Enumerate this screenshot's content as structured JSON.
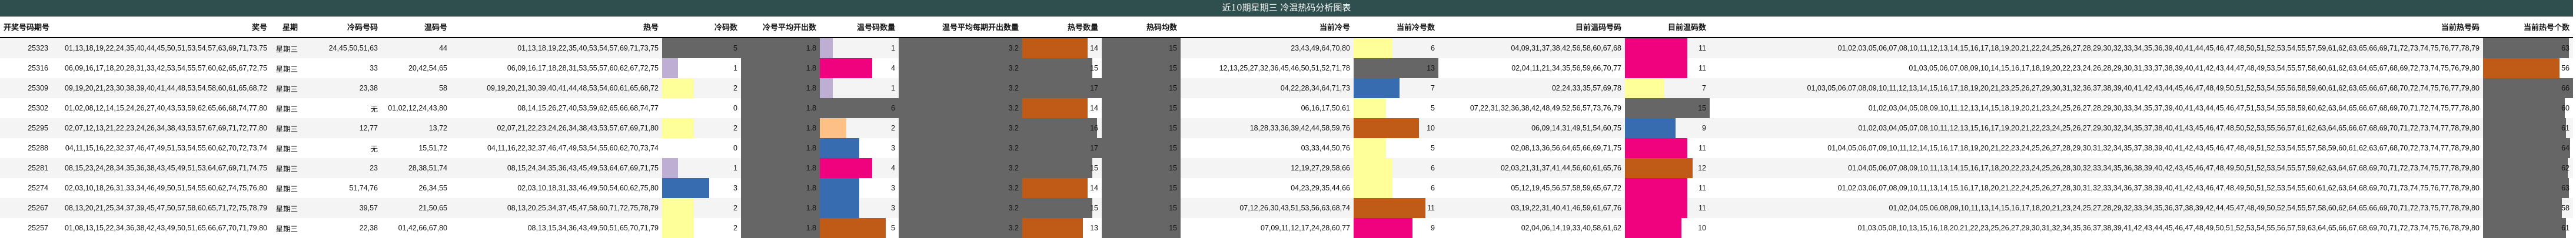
{
  "title": "近10期星期三 冷温热码分析图表",
  "headers": [
    "开奖号码期号",
    "奖号",
    "星期",
    "冷码号码",
    "温码号",
    "热号",
    "冷码数",
    "冷号平均开出数",
    "温号码数量",
    "温号平均每期开出数量",
    "热号数量",
    "热码均数",
    "当前冷号",
    "当前冷号数",
    "目前温码号码",
    "目前温码数",
    "当前热号码",
    "当前热号个数"
  ],
  "colormap": [
    "#7fc97f",
    "#beaed4",
    "#fdc086",
    "#ffff99",
    "#386cb0",
    "#f0027f",
    "#bf5b17",
    "#666666"
  ],
  "rows": [
    {
      "issue": "25323",
      "draw": "01,13,18,19,22,24,35,40,44,45,50,51,53,54,57,63,69,71,73,75",
      "weekday": "星期三",
      "cold": "24,45,50,51,63",
      "warm": "44",
      "hot": "01,13,18,19,22,35,40,53,54,57,69,71,73,75",
      "cold_count": 5,
      "cold_avg": 1.8,
      "warm_count": 1,
      "warm_avg": 3.2,
      "hot_count": 14,
      "hot_avg": 15,
      "cur_cold": "23,43,49,64,70,80",
      "cur_cold_count": 6,
      "cur_warm": "04,09,31,37,38,42,56,58,60,67,68",
      "cur_warm_count": 11,
      "cur_hot": "01,02,03,05,06,07,08,10,11,12,13,14,15,16,17,18,19,20,21,22,24,25,26,27,28,29,30,32,33,34,35,36,39,40,41,44,45,46,47,48,50,51,52,53,54,55,57,59,61,62,63,65,66,69,71,72,73,74,75,76,77,78,79",
      "cur_hot_count": 63
    },
    {
      "issue": "25316",
      "draw": "06,09,16,17,18,20,28,31,33,42,53,54,55,57,60,62,65,67,72,75",
      "weekday": "星期三",
      "cold": "33",
      "warm": "20,42,54,65",
      "hot": "06,09,16,17,18,28,31,53,55,57,60,62,67,72,75",
      "cold_count": 1,
      "cold_avg": 1.8,
      "warm_count": 4,
      "warm_avg": 3.2,
      "hot_count": 15,
      "hot_avg": 15,
      "cur_cold": "12,13,25,27,32,36,45,46,50,51,52,71,78",
      "cur_cold_count": 13,
      "cur_warm": "02,04,11,21,34,35,56,59,66,70,77",
      "cur_warm_count": 11,
      "cur_hot": "01,03,05,06,07,08,09,10,14,15,16,17,18,19,20,22,23,24,26,28,29,30,31,33,37,38,39,40,41,42,43,44,47,48,49,53,54,55,57,58,60,61,62,63,64,65,67,68,69,72,73,74,75,76,79,80",
      "cur_hot_count": 56
    },
    {
      "issue": "25309",
      "draw": "09,19,20,21,23,30,38,39,40,41,44,48,53,54,58,60,61,65,68,72",
      "weekday": "星期三",
      "cold": "23,38",
      "warm": "58",
      "hot": "09,19,20,21,30,39,40,41,44,48,53,54,60,61,65,68,72",
      "cold_count": 2,
      "cold_avg": 1.8,
      "warm_count": 1,
      "warm_avg": 3.2,
      "hot_count": 17,
      "hot_avg": 15,
      "cur_cold": "04,22,28,34,64,71,73",
      "cur_cold_count": 7,
      "cur_warm": "02,24,33,35,57,69,78",
      "cur_warm_count": 7,
      "cur_hot": "01,03,05,06,07,08,09,10,11,12,13,14,15,16,17,18,19,20,21,23,25,26,27,29,30,31,32,36,37,38,39,40,41,42,43,44,45,46,47,48,49,50,51,52,53,54,55,56,58,59,60,61,62,63,65,66,67,68,70,72,74,75,76,77,79,80",
      "cur_hot_count": 66
    },
    {
      "issue": "25302",
      "draw": "01,02,08,12,14,15,24,26,27,40,43,53,59,62,65,66,68,74,77,80",
      "weekday": "星期三",
      "cold": "无",
      "warm": "01,02,12,24,43,80",
      "hot": "08,14,15,26,27,40,53,59,62,65,66,68,74,77",
      "cold_count": 0,
      "cold_avg": 1.8,
      "warm_count": 6,
      "warm_avg": 3.2,
      "hot_count": 14,
      "hot_avg": 15,
      "cur_cold": "06,16,17,50,61",
      "cur_cold_count": 5,
      "cur_warm": "07,22,31,32,36,38,42,48,49,52,56,57,73,76,79",
      "cur_warm_count": 15,
      "cur_hot": "01,02,03,04,05,08,09,10,11,12,13,14,15,18,19,20,21,23,24,25,26,27,28,29,30,33,34,35,37,39,40,41,43,44,45,46,47,51,53,54,55,58,59,60,62,63,64,65,66,67,68,69,70,71,72,74,75,77,78,80",
      "cur_hot_count": 60
    },
    {
      "issue": "25295",
      "draw": "02,07,12,13,21,22,23,24,26,34,38,43,53,57,67,69,71,72,77,80",
      "weekday": "星期三",
      "cold": "12,77",
      "warm": "13,72",
      "hot": "02,07,21,22,23,24,26,34,38,43,53,57,67,69,71,80",
      "cold_count": 2,
      "cold_avg": 1.8,
      "warm_count": 2,
      "warm_avg": 3.2,
      "hot_count": 16,
      "hot_avg": 15,
      "cur_cold": "18,28,33,36,39,42,44,58,59,76",
      "cur_cold_count": 10,
      "cur_warm": "06,09,14,31,49,51,54,60,75",
      "cur_warm_count": 9,
      "cur_hot": "01,02,03,04,05,07,08,10,11,12,13,15,16,17,19,20,21,22,23,24,25,26,27,29,30,32,34,35,37,38,40,41,43,45,46,47,48,50,52,53,55,56,57,61,62,63,64,65,66,67,68,69,70,71,72,73,74,77,78,79,80",
      "cur_hot_count": 61
    },
    {
      "issue": "25288",
      "draw": "04,11,15,16,22,32,37,46,47,49,51,53,54,55,60,62,70,72,73,74",
      "weekday": "星期三",
      "cold": "无",
      "warm": "15,51,72",
      "hot": "04,11,16,22,32,37,46,47,49,53,54,55,60,62,70,73,74",
      "cold_count": 0,
      "cold_avg": 1.8,
      "warm_count": 3,
      "warm_avg": 3.2,
      "hot_count": 17,
      "hot_avg": 15,
      "cur_cold": "03,33,44,50,76",
      "cur_cold_count": 5,
      "cur_warm": "02,08,13,36,56,64,65,66,69,71,75",
      "cur_warm_count": 11,
      "cur_hot": "01,04,05,06,07,09,10,11,12,14,15,16,17,18,19,20,21,22,23,24,25,26,27,28,29,30,31,32,34,35,37,38,39,40,41,42,43,45,46,47,48,49,51,52,53,54,55,57,58,59,60,61,62,63,67,68,70,72,73,74,77,78,79,80",
      "cur_hot_count": 64
    },
    {
      "issue": "25281",
      "draw": "08,15,23,24,28,34,35,36,38,43,45,49,51,53,64,67,69,71,74,75",
      "weekday": "星期三",
      "cold": "23",
      "warm": "28,38,51,74",
      "hot": "08,15,24,34,35,36,43,45,49,53,64,67,69,71,75",
      "cold_count": 1,
      "cold_avg": 1.8,
      "warm_count": 4,
      "warm_avg": 3.2,
      "hot_count": 15,
      "hot_avg": 15,
      "cur_cold": "12,19,27,29,58,66",
      "cur_cold_count": 6,
      "cur_warm": "02,03,21,31,37,41,44,56,60,61,65,76",
      "cur_warm_count": 12,
      "cur_hot": "01,04,05,06,07,08,09,10,11,13,14,15,16,17,18,20,22,23,24,25,26,28,30,32,33,34,35,36,38,39,40,42,43,45,46,47,48,49,50,51,52,53,54,55,57,59,62,63,64,67,68,69,70,71,72,73,74,75,77,78,79,80",
      "cur_hot_count": 62
    },
    {
      "issue": "25274",
      "draw": "02,03,10,18,26,31,33,34,46,49,50,51,54,55,60,62,74,75,76,80",
      "weekday": "星期三",
      "cold": "51,74,76",
      "warm": "26,34,55",
      "hot": "02,03,10,18,31,33,46,49,50,54,60,62,75,80",
      "cold_count": 3,
      "cold_avg": 1.8,
      "warm_count": 3,
      "warm_avg": 3.2,
      "hot_count": 14,
      "hot_avg": 15,
      "cur_cold": "04,23,29,35,44,66",
      "cur_cold_count": 6,
      "cur_warm": "05,12,19,45,56,57,58,59,65,67,72",
      "cur_warm_count": 11,
      "cur_hot": "01,02,03,06,07,08,09,10,11,13,14,15,16,17,18,20,21,22,24,25,26,27,28,30,31,32,33,34,36,37,38,39,40,41,42,43,46,47,48,49,50,51,52,53,54,55,60,61,62,63,64,68,69,70,71,73,74,75,76,77,78,79,80",
      "cur_hot_count": 63
    },
    {
      "issue": "25267",
      "draw": "08,13,20,21,25,34,37,39,45,47,50,57,58,60,65,71,72,75,78,79",
      "weekday": "星期三",
      "cold": "39,57",
      "warm": "21,50,65",
      "hot": "08,13,20,25,34,37,45,47,58,60,71,72,75,78,79",
      "cold_count": 2,
      "cold_avg": 1.8,
      "warm_count": 3,
      "warm_avg": 3.2,
      "hot_count": 15,
      "hot_avg": 15,
      "cur_cold": "07,12,26,30,43,51,53,56,63,68,74",
      "cur_cold_count": 11,
      "cur_warm": "03,19,22,31,40,41,46,59,61,67,76",
      "cur_warm_count": 11,
      "cur_hot": "01,02,04,05,06,08,09,10,11,13,14,15,16,17,18,20,21,23,24,25,27,28,29,32,33,34,35,36,37,38,39,42,44,45,47,48,49,50,52,54,55,57,58,60,62,64,65,66,69,70,71,72,73,75,77,78,79,80",
      "cur_hot_count": 58
    },
    {
      "issue": "25257",
      "draw": "01,08,13,15,22,34,36,38,42,43,49,50,51,65,66,67,70,71,79,80",
      "weekday": "星期三",
      "cold": "22,38",
      "warm": "01,42,66,67,80",
      "hot": "08,13,15,34,36,43,49,50,51,65,70,71,79",
      "cold_count": 2,
      "cold_avg": 1.8,
      "warm_count": 5,
      "warm_avg": 3.2,
      "hot_count": 13,
      "hot_avg": 15,
      "cur_cold": "07,09,11,12,17,24,28,60,77",
      "cur_cold_count": 9,
      "cur_warm": "02,04,06,14,19,33,40,58,61,62",
      "cur_warm_count": 10,
      "cur_hot": "01,03,05,08,10,13,15,16,18,20,21,22,23,25,26,27,29,30,31,32,34,35,36,37,38,39,41,42,43,44,45,46,47,48,49,50,51,52,53,54,55,56,57,59,63,64,65,66,67,68,69,70,71,72,73,74,75,76,78,79,80",
      "cur_hot_count": 61
    }
  ]
}
